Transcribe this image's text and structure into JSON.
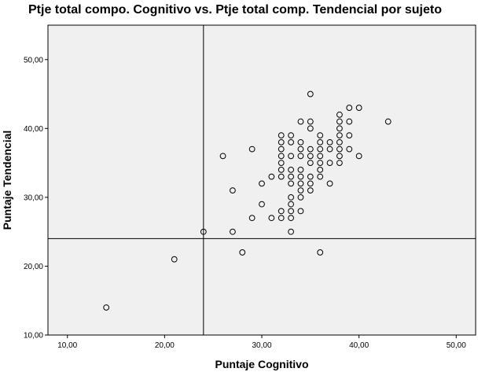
{
  "chart_data": {
    "type": "scatter",
    "title": "Ptje total compo. Cognitivo vs. Ptje total comp. Tendencial por sujeto",
    "xlabel": "Puntaje Cognitivo",
    "ylabel": "Puntaje Tendencial",
    "xlim": [
      8,
      52
    ],
    "ylim": [
      10,
      55
    ],
    "xticks": [
      10,
      20,
      30,
      40,
      50
    ],
    "yticks": [
      10,
      20,
      30,
      40,
      50
    ],
    "xtick_labels": [
      "10,00",
      "20,00",
      "30,00",
      "40,00",
      "50,00"
    ],
    "ytick_labels": [
      "10,00",
      "20,00",
      "30,00",
      "40,00",
      "50,00"
    ],
    "reference_lines": {
      "x": 24,
      "y": 24
    },
    "grid": false,
    "legend": "none",
    "colors": {
      "plot_background": "#f0f0f0",
      "marker_edge": "#000000",
      "reference_line": "#000000"
    },
    "points": [
      [
        14,
        14
      ],
      [
        21,
        21
      ],
      [
        24,
        25
      ],
      [
        26,
        36
      ],
      [
        27,
        25
      ],
      [
        27,
        31
      ],
      [
        28,
        22
      ],
      [
        29,
        27
      ],
      [
        29,
        37
      ],
      [
        30,
        29
      ],
      [
        30,
        32
      ],
      [
        31,
        27
      ],
      [
        31,
        33
      ],
      [
        32,
        27
      ],
      [
        32,
        28
      ],
      [
        32,
        33
      ],
      [
        32,
        34
      ],
      [
        32,
        35
      ],
      [
        32,
        36
      ],
      [
        32,
        37
      ],
      [
        32,
        38
      ],
      [
        32,
        39
      ],
      [
        33,
        25
      ],
      [
        33,
        27
      ],
      [
        33,
        28
      ],
      [
        33,
        29
      ],
      [
        33,
        30
      ],
      [
        33,
        32
      ],
      [
        33,
        33
      ],
      [
        33,
        34
      ],
      [
        33,
        36
      ],
      [
        33,
        38
      ],
      [
        33,
        39
      ],
      [
        34,
        28
      ],
      [
        34,
        30
      ],
      [
        34,
        31
      ],
      [
        34,
        32
      ],
      [
        34,
        33
      ],
      [
        34,
        34
      ],
      [
        34,
        36
      ],
      [
        34,
        37
      ],
      [
        34,
        38
      ],
      [
        34,
        41
      ],
      [
        35,
        31
      ],
      [
        35,
        32
      ],
      [
        35,
        33
      ],
      [
        35,
        35
      ],
      [
        35,
        36
      ],
      [
        35,
        37
      ],
      [
        35,
        40
      ],
      [
        35,
        41
      ],
      [
        35,
        45
      ],
      [
        36,
        22
      ],
      [
        36,
        33
      ],
      [
        36,
        34
      ],
      [
        36,
        35
      ],
      [
        36,
        36
      ],
      [
        36,
        37
      ],
      [
        36,
        38
      ],
      [
        36,
        39
      ],
      [
        37,
        32
      ],
      [
        37,
        35
      ],
      [
        37,
        37
      ],
      [
        37,
        38
      ],
      [
        38,
        35
      ],
      [
        38,
        36
      ],
      [
        38,
        37
      ],
      [
        38,
        38
      ],
      [
        38,
        39
      ],
      [
        38,
        40
      ],
      [
        38,
        41
      ],
      [
        38,
        42
      ],
      [
        39,
        37
      ],
      [
        39,
        39
      ],
      [
        39,
        41
      ],
      [
        39,
        43
      ],
      [
        40,
        36
      ],
      [
        40,
        43
      ],
      [
        43,
        41
      ]
    ]
  }
}
